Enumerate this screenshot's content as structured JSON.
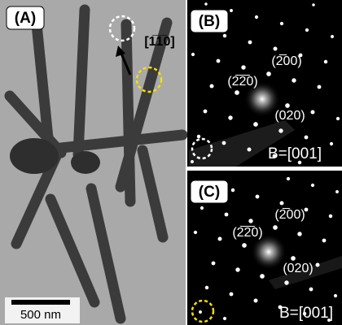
{
  "panels": [
    {
      "label": "(A)",
      "direction": "[1̅1̅0]",
      "scale_bar": "500 nm"
    },
    {
      "label": "(B)",
      "spots": [
        "(2̅00)",
        "(2̅2̅0)",
        "(020)"
      ],
      "zone_axis": "B=[001]"
    },
    {
      "label": "(C)",
      "spots": [
        "(2̅00)",
        "(2̅2̅0)",
        "(020)"
      ],
      "zone_axis": "B=[001]"
    }
  ]
}
